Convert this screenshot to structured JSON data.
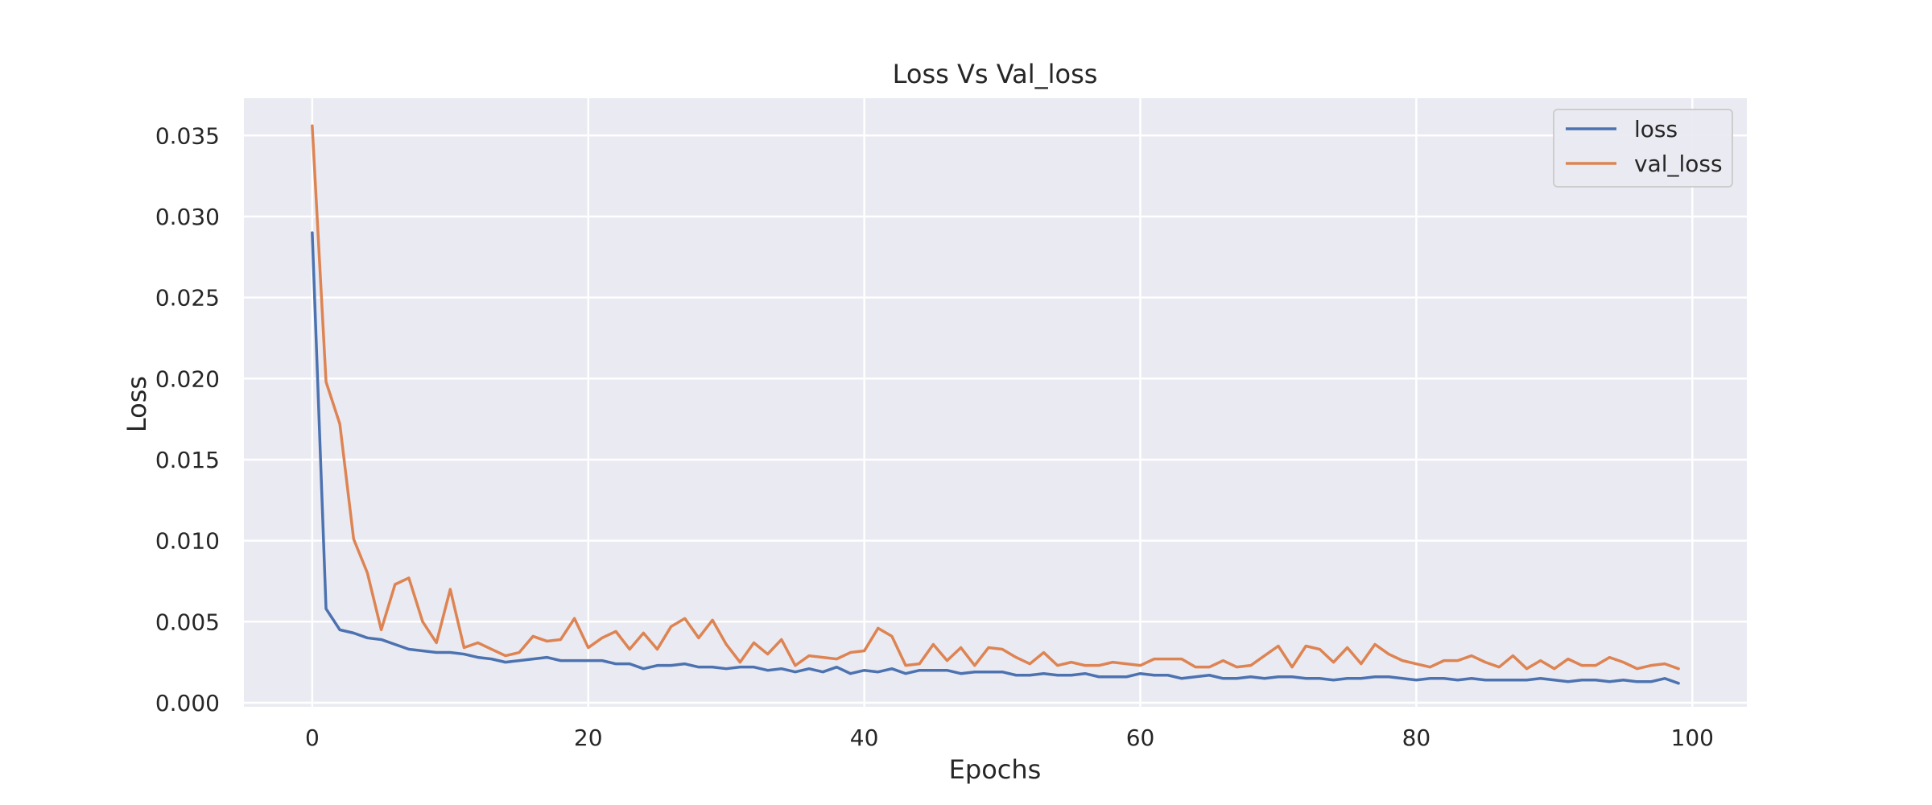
{
  "chart_data": {
    "type": "line",
    "title": "Loss Vs Val_loss",
    "xlabel": "Epochs",
    "ylabel": "Loss",
    "xlim": [
      -4.95,
      103.95
    ],
    "ylim": [
      -0.00025,
      0.0373
    ],
    "xticks": [
      0,
      20,
      40,
      60,
      80,
      100
    ],
    "yticks": [
      0.0,
      0.005,
      0.01,
      0.015,
      0.02,
      0.025,
      0.03,
      0.035
    ],
    "ytick_labels": [
      "0.000",
      "0.005",
      "0.010",
      "0.015",
      "0.020",
      "0.025",
      "0.030",
      "0.035"
    ],
    "grid": true,
    "legend_position": "top-right",
    "background": "#eaeaf2",
    "series": [
      {
        "name": "loss",
        "color": "#4c72b0",
        "x": [
          0,
          1,
          2,
          3,
          4,
          5,
          6,
          7,
          8,
          9,
          10,
          11,
          12,
          13,
          14,
          15,
          16,
          17,
          18,
          19,
          20,
          21,
          22,
          23,
          24,
          25,
          26,
          27,
          28,
          29,
          30,
          31,
          32,
          33,
          34,
          35,
          36,
          37,
          38,
          39,
          40,
          41,
          42,
          43,
          44,
          45,
          46,
          47,
          48,
          49,
          50,
          51,
          52,
          53,
          54,
          55,
          56,
          57,
          58,
          59,
          60,
          61,
          62,
          63,
          64,
          65,
          66,
          67,
          68,
          69,
          70,
          71,
          72,
          73,
          74,
          75,
          76,
          77,
          78,
          79,
          80,
          81,
          82,
          83,
          84,
          85,
          86,
          87,
          88,
          89,
          90,
          91,
          92,
          93,
          94,
          95,
          96,
          97,
          98,
          99
        ],
        "values": [
          0.029,
          0.0058,
          0.0045,
          0.0043,
          0.004,
          0.0039,
          0.0036,
          0.0033,
          0.0032,
          0.0031,
          0.0031,
          0.003,
          0.0028,
          0.0027,
          0.0025,
          0.0026,
          0.0027,
          0.0028,
          0.0026,
          0.0026,
          0.0026,
          0.0026,
          0.0024,
          0.0024,
          0.0021,
          0.0023,
          0.0023,
          0.0024,
          0.0022,
          0.0022,
          0.0021,
          0.0022,
          0.0022,
          0.002,
          0.0021,
          0.0019,
          0.0021,
          0.0019,
          0.0022,
          0.0018,
          0.002,
          0.0019,
          0.0021,
          0.0018,
          0.002,
          0.002,
          0.002,
          0.0018,
          0.0019,
          0.0019,
          0.0019,
          0.0017,
          0.0017,
          0.0018,
          0.0017,
          0.0017,
          0.0018,
          0.0016,
          0.0016,
          0.0016,
          0.0018,
          0.0017,
          0.0017,
          0.0015,
          0.0016,
          0.0017,
          0.0015,
          0.0015,
          0.0016,
          0.0015,
          0.0016,
          0.0016,
          0.0015,
          0.0015,
          0.0014,
          0.0015,
          0.0015,
          0.0016,
          0.0016,
          0.0015,
          0.0014,
          0.0015,
          0.0015,
          0.0014,
          0.0015,
          0.0014,
          0.0014,
          0.0014,
          0.0014,
          0.0015,
          0.0014,
          0.0013,
          0.0014,
          0.0014,
          0.0013,
          0.0014,
          0.0013,
          0.0013,
          0.0015,
          0.0012
        ]
      },
      {
        "name": "val_loss",
        "color": "#dd8452",
        "x": [
          0,
          1,
          2,
          3,
          4,
          5,
          6,
          7,
          8,
          9,
          10,
          11,
          12,
          13,
          14,
          15,
          16,
          17,
          18,
          19,
          20,
          21,
          22,
          23,
          24,
          25,
          26,
          27,
          28,
          29,
          30,
          31,
          32,
          33,
          34,
          35,
          36,
          37,
          38,
          39,
          40,
          41,
          42,
          43,
          44,
          45,
          46,
          47,
          48,
          49,
          50,
          51,
          52,
          53,
          54,
          55,
          56,
          57,
          58,
          59,
          60,
          61,
          62,
          63,
          64,
          65,
          66,
          67,
          68,
          69,
          70,
          71,
          72,
          73,
          74,
          75,
          76,
          77,
          78,
          79,
          80,
          81,
          82,
          83,
          84,
          85,
          86,
          87,
          88,
          89,
          90,
          91,
          92,
          93,
          94,
          95,
          96,
          97,
          98,
          99
        ],
        "values": [
          0.0356,
          0.0198,
          0.0172,
          0.0101,
          0.008,
          0.0045,
          0.0073,
          0.0077,
          0.005,
          0.0037,
          0.007,
          0.0034,
          0.0037,
          0.0033,
          0.0029,
          0.0031,
          0.0041,
          0.0038,
          0.0039,
          0.0052,
          0.0034,
          0.004,
          0.0044,
          0.0033,
          0.0043,
          0.0033,
          0.0047,
          0.0052,
          0.004,
          0.0051,
          0.0036,
          0.0025,
          0.0037,
          0.003,
          0.0039,
          0.0023,
          0.0029,
          0.0028,
          0.0027,
          0.0031,
          0.0032,
          0.0046,
          0.0041,
          0.0023,
          0.0024,
          0.0036,
          0.0026,
          0.0034,
          0.0023,
          0.0034,
          0.0033,
          0.0028,
          0.0024,
          0.0031,
          0.0023,
          0.0025,
          0.0023,
          0.0023,
          0.0025,
          0.0024,
          0.0023,
          0.0027,
          0.0027,
          0.0027,
          0.0022,
          0.0022,
          0.0026,
          0.0022,
          0.0023,
          0.0029,
          0.0035,
          0.0022,
          0.0035,
          0.0033,
          0.0025,
          0.0034,
          0.0024,
          0.0036,
          0.003,
          0.0026,
          0.0024,
          0.0022,
          0.0026,
          0.0026,
          0.0029,
          0.0025,
          0.0022,
          0.0029,
          0.0021,
          0.0026,
          0.0021,
          0.0027,
          0.0023,
          0.0023,
          0.0028,
          0.0025,
          0.0021,
          0.0023,
          0.0024,
          0.0021
        ]
      }
    ]
  }
}
